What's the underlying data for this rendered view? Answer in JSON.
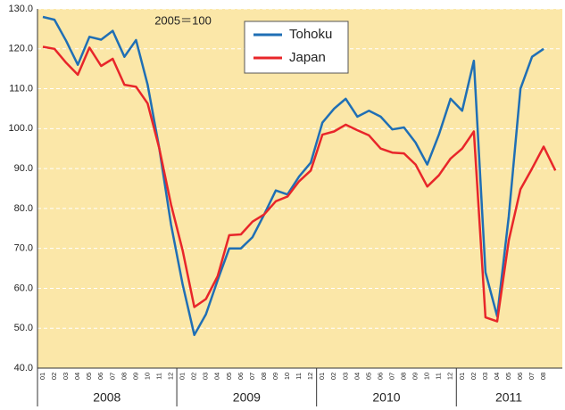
{
  "chart_data": {
    "type": "line",
    "annotation": "2005＝100",
    "categories": [
      "01",
      "02",
      "03",
      "04",
      "05",
      "06",
      "07",
      "08",
      "09",
      "10",
      "11",
      "12",
      "01",
      "02",
      "03",
      "04",
      "05",
      "06",
      "07",
      "08",
      "09",
      "10",
      "11",
      "12",
      "01",
      "02",
      "03",
      "04",
      "05",
      "06",
      "07",
      "08",
      "09",
      "10",
      "11",
      "12",
      "01",
      "02",
      "03",
      "04",
      "05",
      "06",
      "07",
      "08",
      null
    ],
    "years": [
      "2008",
      "2009",
      "2010",
      "2011"
    ],
    "series": [
      {
        "name": "Tohoku",
        "color": "#1f6fb5",
        "values": [
          128,
          127.3,
          122,
          116,
          123,
          122.3,
          124.5,
          118,
          122.2,
          111,
          95,
          76,
          61,
          48.3,
          53.5,
          62,
          70,
          70,
          72.8,
          78.5,
          84.5,
          83.5,
          88,
          91.5,
          101.5,
          105,
          107.5,
          103,
          104.5,
          103,
          99.8,
          100.3,
          96.5,
          91,
          98.5,
          107.5,
          104.5,
          117,
          64,
          53,
          78,
          110,
          118,
          120,
          null
        ]
      },
      {
        "name": "Japan",
        "color": "#e8262a",
        "values": [
          120.5,
          120,
          116.5,
          113.5,
          120.3,
          115.7,
          117.5,
          111,
          110.5,
          106.3,
          95,
          81,
          69.5,
          55.3,
          57.3,
          63,
          73.3,
          73.5,
          76.7,
          78.5,
          81.8,
          83,
          86.8,
          89.5,
          98.5,
          99.3,
          101,
          99.6,
          98.3,
          95,
          94,
          93.8,
          91,
          85.5,
          88.3,
          92.5,
          95,
          99.3,
          52.7,
          51.7,
          72,
          84.8,
          90,
          95.5,
          89.5
        ]
      }
    ],
    "ylim": [
      40,
      130
    ],
    "yticks": [
      {
        "value": 40,
        "label": "40.0"
      },
      {
        "value": 50,
        "label": "50.0"
      },
      {
        "value": 60,
        "label": "60.0"
      },
      {
        "value": 70,
        "label": "70.0"
      },
      {
        "value": 80,
        "label": "80.0"
      },
      {
        "value": 90,
        "label": "90.0"
      },
      {
        "value": 100,
        "label": "100.0"
      },
      {
        "value": 110,
        "label": "110.0"
      },
      {
        "value": 120,
        "label": "120.0"
      },
      {
        "value": 130,
        "label": "130.0"
      }
    ],
    "grid": true
  }
}
